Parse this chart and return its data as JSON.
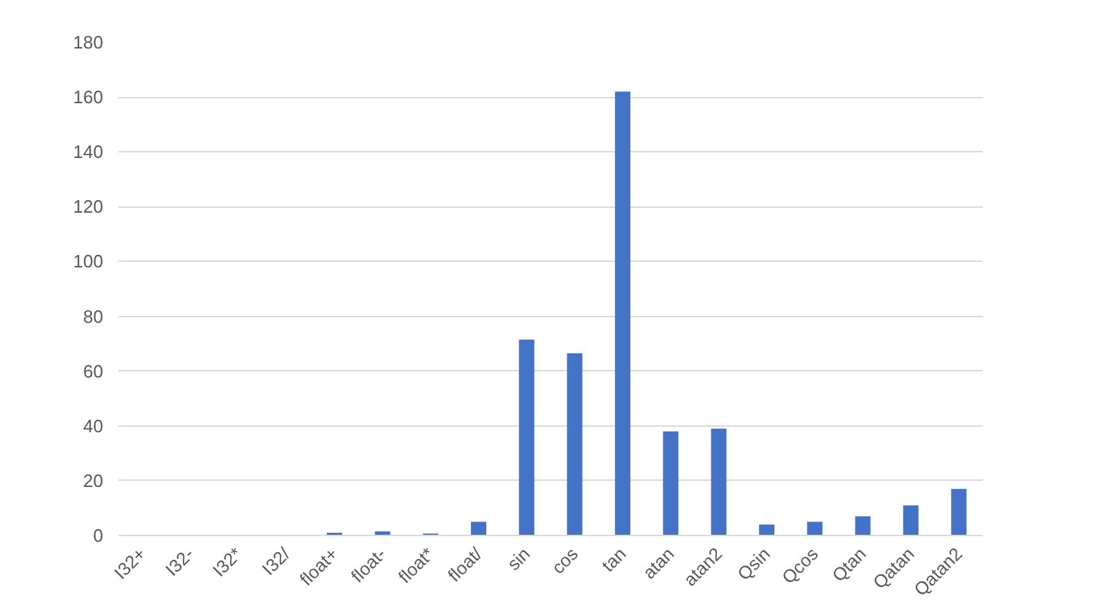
{
  "chart_data": {
    "type": "bar",
    "categories": [
      "I32+",
      "I32-",
      "I32*",
      "I32/",
      "float+",
      "float-",
      "float*",
      "float/",
      "sin",
      "cos",
      "tan",
      "atan",
      "atan2",
      "Qsin",
      "Qcos",
      "Qtan",
      "Qatan",
      "Qatan2"
    ],
    "values": [
      0,
      0,
      0,
      0,
      1,
      1.5,
      0.7,
      5,
      71.5,
      66.5,
      162,
      38,
      39,
      4,
      5,
      7,
      11,
      17
    ],
    "color": "#4472c4",
    "ylim": [
      0,
      180
    ],
    "yticks": [
      0,
      20,
      40,
      60,
      80,
      100,
      120,
      140,
      160,
      180
    ],
    "grid": "y"
  }
}
